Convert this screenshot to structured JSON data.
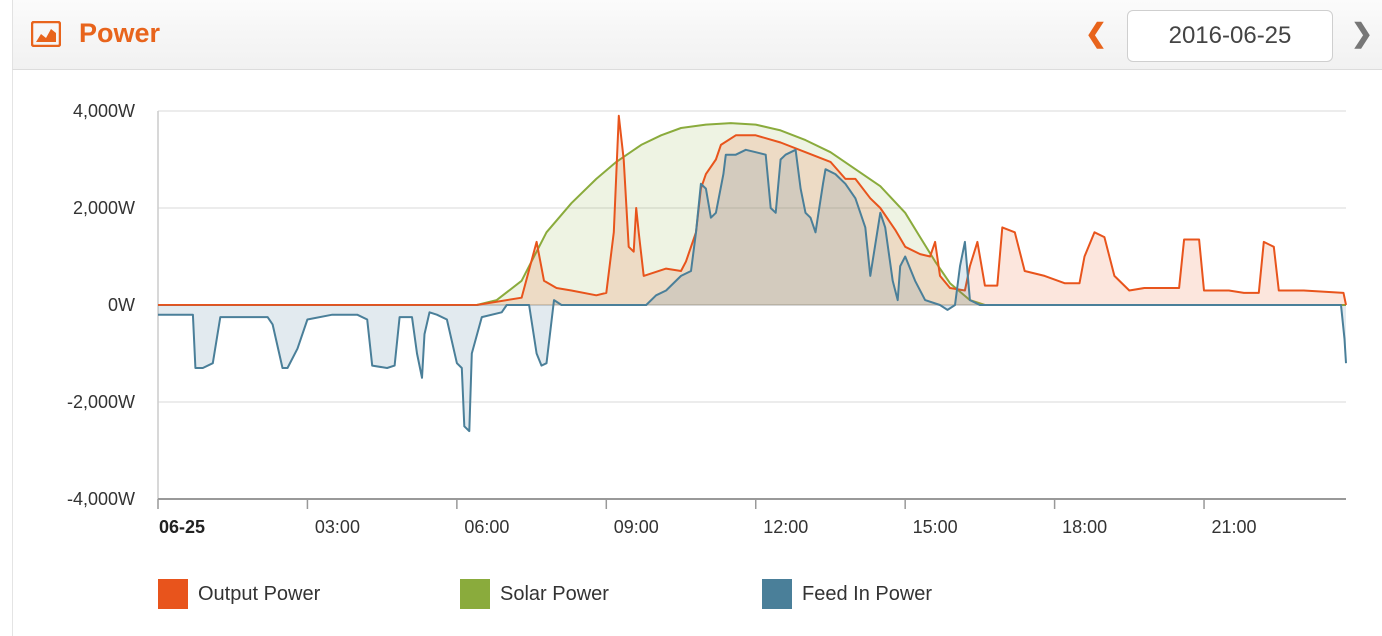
{
  "header": {
    "title": "Power",
    "icon": "area-chart-icon",
    "date": "2016-06-25",
    "prev_icon": "chevron-left-icon",
    "next_icon": "chevron-right-icon"
  },
  "colors": {
    "accent": "#e8641c",
    "output": "#e8541c",
    "solar": "#8aab3c",
    "feed": "#4a7f99"
  },
  "chart_data": {
    "type": "area",
    "ylim": [
      -4000,
      4000
    ],
    "y_ticks": [
      4000,
      2000,
      0,
      -2000,
      -4000
    ],
    "y_tick_labels": [
      "4,000W",
      "2,000W",
      "0W",
      "-2,000W",
      "-4,000W"
    ],
    "xlim": [
      0,
      23.85
    ],
    "x_ticks": [
      0,
      3,
      6,
      9,
      12,
      15,
      18,
      21
    ],
    "x_tick_labels": [
      "06-25",
      "03:00",
      "06:00",
      "09:00",
      "12:00",
      "15:00",
      "18:00",
      "21:00"
    ],
    "grid": true,
    "legend_position": "bottom",
    "series": [
      {
        "name": "Output Power",
        "color": "#e8541c",
        "points": [
          [
            0,
            0
          ],
          [
            6.4,
            0
          ],
          [
            7.3,
            150
          ],
          [
            7.6,
            1300
          ],
          [
            7.75,
            500
          ],
          [
            8.0,
            350
          ],
          [
            8.3,
            300
          ],
          [
            8.8,
            200
          ],
          [
            9.0,
            250
          ],
          [
            9.15,
            1500
          ],
          [
            9.25,
            3900
          ],
          [
            9.35,
            3000
          ],
          [
            9.45,
            1200
          ],
          [
            9.55,
            1100
          ],
          [
            9.6,
            2000
          ],
          [
            9.65,
            1500
          ],
          [
            9.75,
            600
          ],
          [
            10.2,
            750
          ],
          [
            10.5,
            700
          ],
          [
            10.6,
            900
          ],
          [
            10.8,
            1500
          ],
          [
            10.9,
            2400
          ],
          [
            11.0,
            2700
          ],
          [
            11.2,
            3000
          ],
          [
            11.3,
            3300
          ],
          [
            11.6,
            3500
          ],
          [
            12.0,
            3500
          ],
          [
            12.5,
            3350
          ],
          [
            13.0,
            3150
          ],
          [
            13.5,
            2950
          ],
          [
            13.8,
            2600
          ],
          [
            14.0,
            2600
          ],
          [
            14.3,
            2200
          ],
          [
            14.5,
            2000
          ],
          [
            14.8,
            1550
          ],
          [
            15.0,
            1200
          ],
          [
            15.3,
            1050
          ],
          [
            15.5,
            1000
          ],
          [
            15.6,
            1300
          ],
          [
            15.7,
            600
          ],
          [
            15.9,
            350
          ],
          [
            16.2,
            300
          ],
          [
            16.3,
            800
          ],
          [
            16.45,
            1300
          ],
          [
            16.6,
            400
          ],
          [
            16.85,
            400
          ],
          [
            16.95,
            1600
          ],
          [
            17.2,
            1500
          ],
          [
            17.4,
            700
          ],
          [
            17.8,
            600
          ],
          [
            18.2,
            450
          ],
          [
            18.5,
            450
          ],
          [
            18.6,
            1000
          ],
          [
            18.8,
            1500
          ],
          [
            19.0,
            1400
          ],
          [
            19.2,
            600
          ],
          [
            19.5,
            300
          ],
          [
            19.8,
            350
          ],
          [
            20.2,
            350
          ],
          [
            20.5,
            350
          ],
          [
            20.6,
            1350
          ],
          [
            20.9,
            1350
          ],
          [
            21.0,
            300
          ],
          [
            21.3,
            300
          ],
          [
            21.5,
            300
          ],
          [
            21.8,
            250
          ],
          [
            22.1,
            250
          ],
          [
            22.2,
            1300
          ],
          [
            22.4,
            1200
          ],
          [
            22.5,
            300
          ],
          [
            23.0,
            300
          ],
          [
            23.8,
            250
          ],
          [
            23.85,
            0
          ]
        ]
      },
      {
        "name": "Solar Power",
        "color": "#8aab3c",
        "points": [
          [
            0,
            0
          ],
          [
            6.4,
            0
          ],
          [
            6.8,
            100
          ],
          [
            7.3,
            500
          ],
          [
            7.8,
            1500
          ],
          [
            8.3,
            2100
          ],
          [
            8.8,
            2600
          ],
          [
            9.2,
            2950
          ],
          [
            9.7,
            3300
          ],
          [
            10.1,
            3500
          ],
          [
            10.5,
            3650
          ],
          [
            11.0,
            3720
          ],
          [
            11.5,
            3750
          ],
          [
            12.0,
            3720
          ],
          [
            12.5,
            3600
          ],
          [
            13.0,
            3400
          ],
          [
            13.5,
            3150
          ],
          [
            14.0,
            2800
          ],
          [
            14.5,
            2450
          ],
          [
            15.0,
            1900
          ],
          [
            15.3,
            1400
          ],
          [
            15.6,
            900
          ],
          [
            15.9,
            450
          ],
          [
            16.3,
            100
          ],
          [
            16.6,
            0
          ],
          [
            23.85,
            0
          ]
        ]
      },
      {
        "name": "Feed In Power",
        "color": "#4a7f99",
        "points": [
          [
            0,
            -200
          ],
          [
            0.7,
            -200
          ],
          [
            0.75,
            -1300
          ],
          [
            0.9,
            -1300
          ],
          [
            1.1,
            -1200
          ],
          [
            1.25,
            -250
          ],
          [
            1.5,
            -250
          ],
          [
            2.2,
            -250
          ],
          [
            2.3,
            -400
          ],
          [
            2.5,
            -1300
          ],
          [
            2.6,
            -1300
          ],
          [
            2.8,
            -900
          ],
          [
            3.0,
            -300
          ],
          [
            3.5,
            -200
          ],
          [
            4.0,
            -200
          ],
          [
            4.2,
            -300
          ],
          [
            4.3,
            -1250
          ],
          [
            4.6,
            -1300
          ],
          [
            4.75,
            -1250
          ],
          [
            4.85,
            -250
          ],
          [
            5.1,
            -250
          ],
          [
            5.2,
            -1000
          ],
          [
            5.3,
            -1500
          ],
          [
            5.35,
            -600
          ],
          [
            5.45,
            -150
          ],
          [
            5.6,
            -200
          ],
          [
            5.8,
            -300
          ],
          [
            6.0,
            -1200
          ],
          [
            6.1,
            -1300
          ],
          [
            6.15,
            -2500
          ],
          [
            6.25,
            -2600
          ],
          [
            6.3,
            -1000
          ],
          [
            6.5,
            -250
          ],
          [
            6.9,
            -150
          ],
          [
            7.0,
            0
          ],
          [
            7.45,
            0
          ],
          [
            7.6,
            -1000
          ],
          [
            7.7,
            -1250
          ],
          [
            7.8,
            -1200
          ],
          [
            7.95,
            100
          ],
          [
            8.1,
            0
          ],
          [
            9.5,
            0
          ],
          [
            9.8,
            0
          ],
          [
            10.0,
            200
          ],
          [
            10.2,
            300
          ],
          [
            10.5,
            600
          ],
          [
            10.7,
            700
          ],
          [
            10.8,
            1500
          ],
          [
            10.9,
            2500
          ],
          [
            11.0,
            2400
          ],
          [
            11.1,
            1800
          ],
          [
            11.2,
            1900
          ],
          [
            11.35,
            2700
          ],
          [
            11.4,
            3100
          ],
          [
            11.6,
            3100
          ],
          [
            11.8,
            3200
          ],
          [
            12.0,
            3150
          ],
          [
            12.2,
            3100
          ],
          [
            12.3,
            2000
          ],
          [
            12.4,
            1900
          ],
          [
            12.5,
            3000
          ],
          [
            12.6,
            3100
          ],
          [
            12.8,
            3200
          ],
          [
            12.9,
            2400
          ],
          [
            13.0,
            1900
          ],
          [
            13.1,
            1800
          ],
          [
            13.2,
            1500
          ],
          [
            13.35,
            2500
          ],
          [
            13.4,
            2800
          ],
          [
            13.6,
            2700
          ],
          [
            13.8,
            2500
          ],
          [
            14.0,
            2200
          ],
          [
            14.2,
            1600
          ],
          [
            14.3,
            600
          ],
          [
            14.5,
            1900
          ],
          [
            14.6,
            1600
          ],
          [
            14.75,
            500
          ],
          [
            14.85,
            100
          ],
          [
            14.9,
            800
          ],
          [
            15.0,
            1000
          ],
          [
            15.2,
            500
          ],
          [
            15.4,
            100
          ],
          [
            15.7,
            0
          ],
          [
            15.85,
            -100
          ],
          [
            16.0,
            0
          ],
          [
            16.1,
            800
          ],
          [
            16.2,
            1300
          ],
          [
            16.3,
            100
          ],
          [
            16.5,
            0
          ],
          [
            20.0,
            0
          ],
          [
            23.5,
            0
          ],
          [
            23.75,
            0
          ],
          [
            23.82,
            -700
          ],
          [
            23.85,
            -1200
          ]
        ]
      }
    ]
  },
  "legend": [
    {
      "label": "Output Power",
      "color": "#e8541c"
    },
    {
      "label": "Solar Power",
      "color": "#8aab3c"
    },
    {
      "label": "Feed In Power",
      "color": "#4a7f99"
    }
  ]
}
